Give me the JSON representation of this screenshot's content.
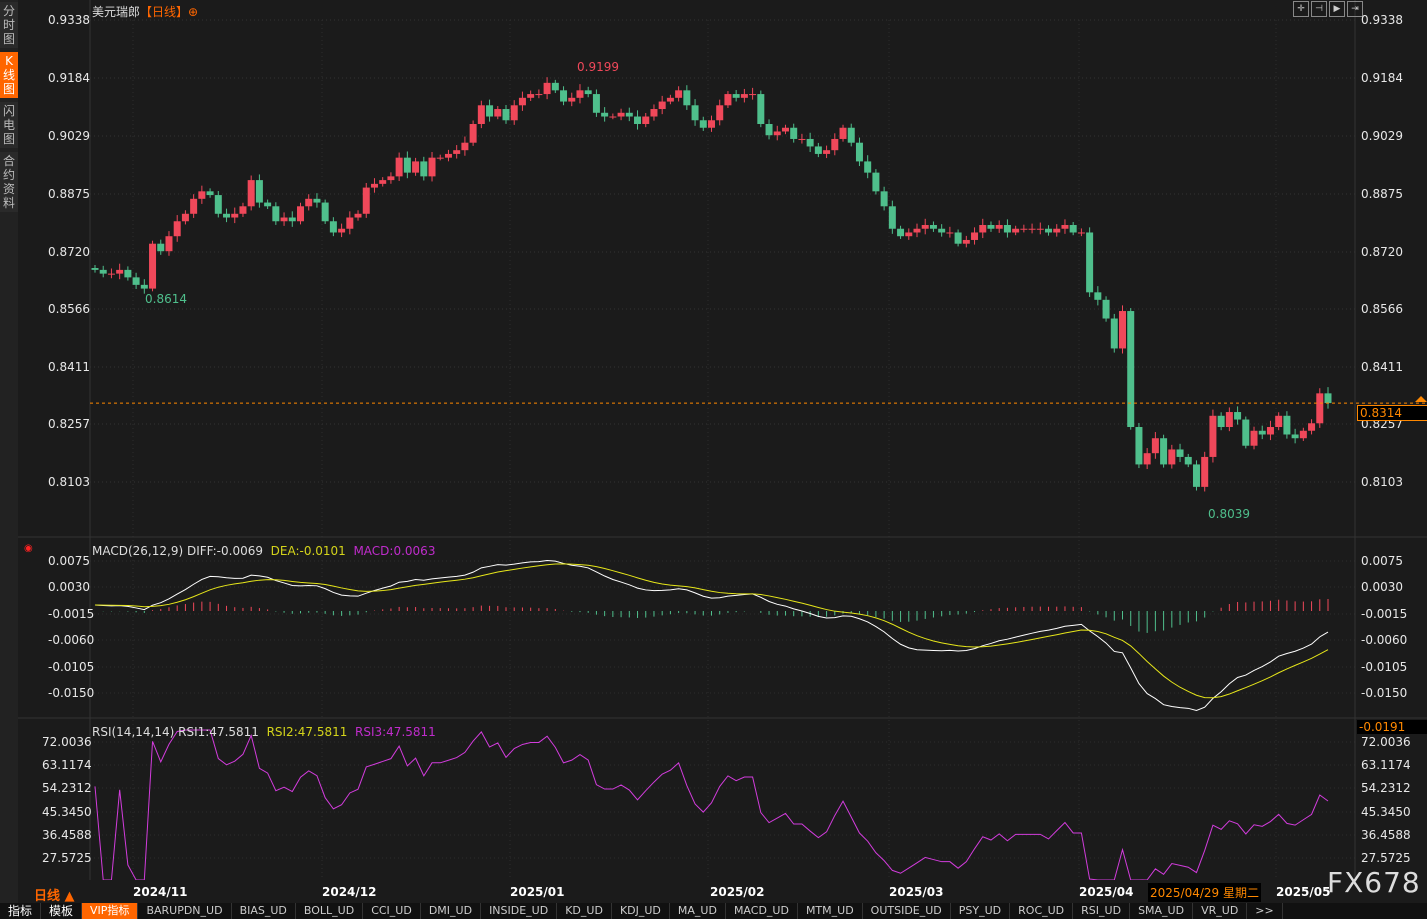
{
  "sidebar": {
    "items": [
      "分时图",
      "K线图",
      "闪电图",
      "合约资料"
    ],
    "active": 1
  },
  "header": {
    "symbol": "美元瑞郎",
    "period": "【日线】",
    "icon": "crosshair-circle-icon"
  },
  "toolbar": {
    "icons": [
      "crosshair-icon",
      "zoom-in-icon",
      "zoom-out-icon",
      "move-right-icon"
    ]
  },
  "price_axis": {
    "ticks": [
      "0.9338",
      "0.9184",
      "0.9029",
      "0.8875",
      "0.8720",
      "0.8566",
      "0.8411",
      "0.8257",
      "0.8103"
    ],
    "current": "0.8314"
  },
  "annotations": {
    "high": "0.9199",
    "low1": "0.8614",
    "low2": "0.8039"
  },
  "colors": {
    "up": "#f0485a",
    "down": "#4fbf8c",
    "diff": "#ffffff",
    "dea": "#e6e61a",
    "macd": "#c03ccc",
    "rsi": "#d23cdc",
    "accent": "#ff6600"
  },
  "chart_data": {
    "type": "candlestick",
    "closes": [
      0.867,
      0.866,
      0.866,
      0.867,
      0.865,
      0.863,
      0.862,
      0.874,
      0.872,
      0.876,
      0.88,
      0.882,
      0.886,
      0.888,
      0.887,
      0.882,
      0.881,
      0.882,
      0.884,
      0.891,
      0.885,
      0.884,
      0.88,
      0.881,
      0.88,
      0.884,
      0.886,
      0.885,
      0.88,
      0.877,
      0.878,
      0.881,
      0.882,
      0.889,
      0.89,
      0.891,
      0.892,
      0.897,
      0.893,
      0.896,
      0.892,
      0.897,
      0.897,
      0.898,
      0.899,
      0.901,
      0.906,
      0.911,
      0.908,
      0.91,
      0.907,
      0.911,
      0.913,
      0.914,
      0.914,
      0.917,
      0.915,
      0.912,
      0.913,
      0.915,
      0.914,
      0.909,
      0.908,
      0.908,
      0.909,
      0.908,
      0.906,
      0.908,
      0.91,
      0.912,
      0.913,
      0.915,
      0.911,
      0.907,
      0.905,
      0.907,
      0.911,
      0.914,
      0.913,
      0.914,
      0.914,
      0.906,
      0.903,
      0.904,
      0.905,
      0.902,
      0.902,
      0.9,
      0.898,
      0.899,
      0.902,
      0.905,
      0.901,
      0.896,
      0.893,
      0.888,
      0.884,
      0.878,
      0.876,
      0.877,
      0.878,
      0.879,
      0.878,
      0.877,
      0.877,
      0.874,
      0.875,
      0.877,
      0.879,
      0.878,
      0.879,
      0.877,
      0.878,
      0.878,
      0.878,
      0.878,
      0.877,
      0.878,
      0.879,
      0.877,
      0.877,
      0.861,
      0.859,
      0.854,
      0.846,
      0.856,
      0.825,
      0.815,
      0.818,
      0.822,
      0.815,
      0.819,
      0.817,
      0.815,
      0.809,
      0.817,
      0.828,
      0.825,
      0.829,
      0.827,
      0.82,
      0.824,
      0.823,
      0.825,
      0.828,
      0.823,
      0.822,
      0.824,
      0.826,
      0.834,
      0.8314
    ],
    "ylim": [
      0.8039,
      0.9338
    ]
  },
  "macd": {
    "label": "MACD(26,12,9)",
    "diff": "DIFF:-0.0069",
    "dea": "DEA:-0.0101",
    "macd": "MACD:0.0063",
    "ticks": [
      "0.0075",
      "0.0030",
      "-0.0015",
      "-0.0060",
      "-0.0105",
      "-0.0150"
    ],
    "current": "-0.0191"
  },
  "rsi": {
    "label": "RSI(14,14,14)",
    "rsi1": "RSI1:47.5811",
    "rsi2": "RSI2:47.5811",
    "rsi3": "RSI3:47.5811",
    "ticks": [
      "72.0036",
      "63.1174",
      "54.2312",
      "45.3450",
      "36.4588",
      "27.5725"
    ]
  },
  "xaxis": {
    "period": "日线 ▲",
    "months": [
      "2024/11",
      "2024/12",
      "2025/01",
      "2025/02",
      "2025/03",
      "2025/04",
      "2025/05"
    ],
    "cursor_date": "2025/04/29 星期二"
  },
  "watermark": "FX678",
  "tabs": [
    "指标",
    "模板",
    "VIP指标",
    "BARUPDN_UD",
    "BIAS_UD",
    "BOLL_UD",
    "CCI_UD",
    "DMI_UD",
    "INSIDE_UD",
    "KD_UD",
    "KDJ_UD",
    "MA_UD",
    "MACD_UD",
    "MTM_UD",
    "OUTSIDE_UD",
    "PSY_UD",
    "ROC_UD",
    "RSI_UD",
    "SMA_UD",
    "VR_UD",
    ">>"
  ]
}
